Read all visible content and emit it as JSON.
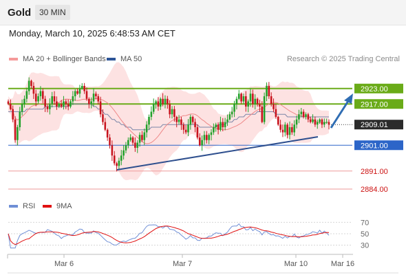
{
  "header": {
    "instrument": "Gold",
    "timeframe": "30 MIN"
  },
  "datetime": "Monday, March 10, 2025 6:48:53 AM CET",
  "legend": {
    "ma_bb": {
      "label": "MA 20 + Bollinger Bands",
      "color": "#f59a9a"
    },
    "ma50": {
      "label": "MA 50",
      "color": "#2d5597"
    },
    "rsi": {
      "label": "RSI",
      "color": "#6f8fd6"
    },
    "ma9": {
      "label": "9MA",
      "color": "#e01010"
    }
  },
  "research": "Research © 2025 Trading Central",
  "colors": {
    "up_candle": "#22a12a",
    "down_candle": "#c8141e",
    "resistance": "#6aab18",
    "support": "#2c65c8",
    "extra_support": "#ee9a9a",
    "trend": "#2e4f8e",
    "arrow": "#2f6db3",
    "bands_fill": "#fde2e2"
  },
  "chart_data": [
    {
      "type": "candlestick",
      "x_ticks": [
        "Mar 6",
        "Mar 7",
        "Mar 10",
        "Mar 16"
      ],
      "ylim": [
        2880,
        2932
      ],
      "levels": [
        {
          "label": "2923.00",
          "value": 2923.0,
          "kind": "resistance"
        },
        {
          "label": "2917.00",
          "value": 2917.0,
          "kind": "resistance"
        },
        {
          "label": "2909.01",
          "value": 2909.01,
          "kind": "last"
        },
        {
          "label": "2901.00",
          "value": 2901.0,
          "kind": "support"
        },
        {
          "label": "2891.00",
          "value": 2891.0,
          "kind": "extra-support"
        },
        {
          "label": "2884.00",
          "value": 2884.0,
          "kind": "extra-support"
        }
      ],
      "bias": "bullish",
      "closes": [
        2917,
        2915,
        2911,
        2903,
        2908,
        2914,
        2917,
        2919,
        2922,
        2926,
        2924,
        2921,
        2918,
        2920,
        2922,
        2919,
        2916,
        2915,
        2917,
        2920,
        2918,
        2916,
        2917,
        2916,
        2918,
        2917,
        2916,
        2918,
        2920,
        2922,
        2921,
        2923,
        2924,
        2922,
        2919,
        2917,
        2918,
        2921,
        2920,
        2918,
        2913,
        2910,
        2907,
        2904,
        2901,
        2897,
        2894,
        2893,
        2895,
        2897,
        2899,
        2901,
        2903,
        2904,
        2902,
        2900,
        2902,
        2905,
        2903,
        2906,
        2909,
        2912,
        2914,
        2917,
        2918,
        2916,
        2919,
        2917,
        2919,
        2917,
        2913,
        2915,
        2912,
        2910,
        2911,
        2909,
        2907,
        2906,
        2909,
        2912,
        2910,
        2908,
        2904,
        2901,
        2903,
        2905,
        2903,
        2905,
        2906,
        2908,
        2909,
        2907,
        2910,
        2908,
        2910,
        2911,
        2913,
        2914,
        2917,
        2919,
        2921,
        2918,
        2920,
        2916,
        2918,
        2921,
        2917,
        2919,
        2917,
        2916,
        2910,
        2920,
        2924,
        2920,
        2917,
        2915,
        2912,
        2909,
        2907,
        2906,
        2909,
        2905,
        2908,
        2906,
        2909,
        2911,
        2913,
        2914,
        2912,
        2913,
        2911,
        2910,
        2911,
        2909,
        2910,
        2911,
        2909,
        2910,
        2910,
        2909
      ],
      "ma50": [
        2914,
        2914,
        2914,
        2914,
        2914,
        2914,
        2914,
        2914,
        2915,
        2915,
        2915,
        2915,
        2915,
        2915,
        2915,
        2915,
        2916,
        2916,
        2916,
        2916,
        2916,
        2916,
        2916,
        2916,
        2916,
        2916,
        2916,
        2917,
        2917,
        2917,
        2917,
        2917,
        2917,
        2917,
        2917,
        2917,
        2917,
        2916,
        2916,
        2915,
        2915,
        2914,
        2913,
        2913,
        2912,
        2911,
        2911,
        2910,
        2910,
        2909,
        2909,
        2908,
        2908,
        2908,
        2907,
        2907,
        2907,
        2907,
        2907,
        2907,
        2907,
        2907,
        2908,
        2908,
        2908,
        2908,
        2908,
        2909,
        2909,
        2909,
        2909,
        2909,
        2909,
        2909,
        2909,
        2909,
        2909,
        2909,
        2909,
        2909,
        2909,
        2909,
        2909,
        2908,
        2908,
        2908,
        2908,
        2908,
        2908,
        2908,
        2908,
        2909,
        2909,
        2909,
        2909,
        2910,
        2910,
        2910,
        2911,
        2911,
        2912,
        2912,
        2912,
        2913,
        2913,
        2913,
        2913,
        2913,
        2914,
        2914,
        2914,
        2914,
        2914,
        2914,
        2914,
        2914,
        2913,
        2913,
        2913,
        2913,
        2913,
        2912,
        2912,
        2912,
        2912,
        2912,
        2912,
        2912,
        2912,
        2912,
        2912,
        2912,
        2912,
        2912,
        2912,
        2912,
        2912,
        2912,
        2912,
        2912
      ]
    },
    {
      "type": "line",
      "title": "RSI",
      "yticks": [
        70,
        50,
        30
      ],
      "ylim": [
        20,
        80
      ]
    }
  ]
}
